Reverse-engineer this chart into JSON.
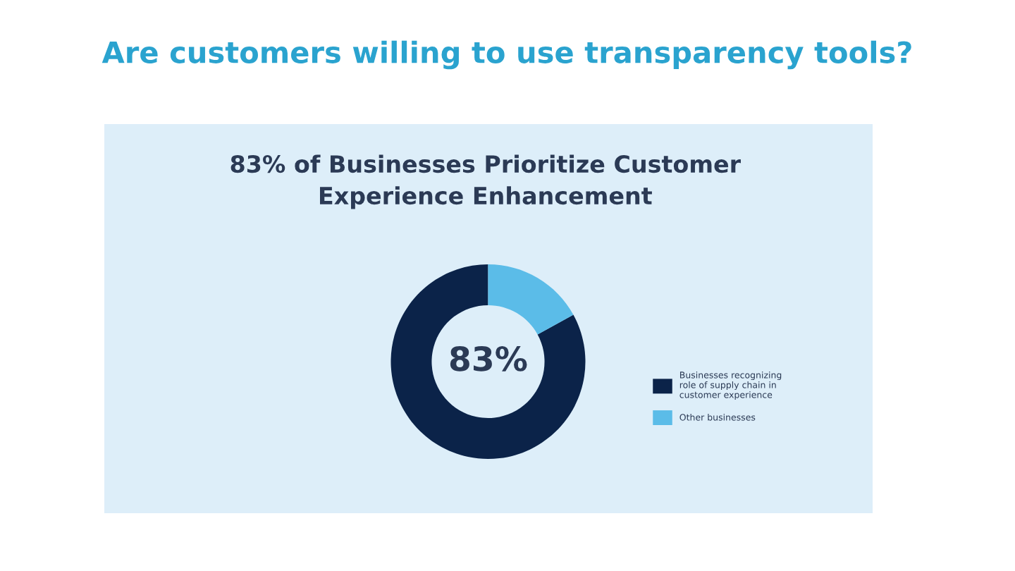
{
  "chart_data": {
    "type": "donut",
    "title": "Are customers willing to use transparency tools?",
    "subtitle": "83% of Businesses Prioritize Customer Experience Enhancement",
    "categories": [
      "Businesses recognizing role of supply chain in customer experience",
      "Other businesses"
    ],
    "values": [
      83,
      17
    ],
    "colors": [
      "#0b2349",
      "#5bbce8"
    ],
    "annotations": [
      "83%"
    ],
    "legend": "right"
  }
}
